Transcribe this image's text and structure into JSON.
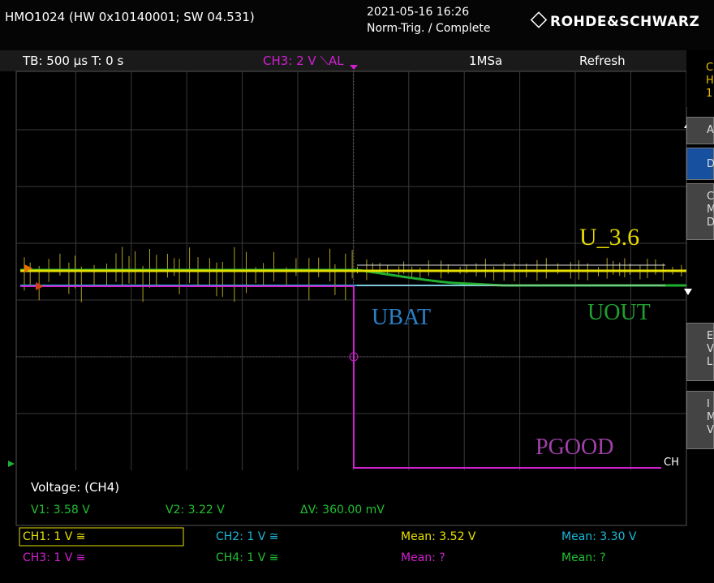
{
  "header": {
    "model": "HMO1024 (HW 0x10140001; SW 04.531)",
    "datetime": "2021-05-16 16:26",
    "trigger_state": "Norm-Trig. / Complete",
    "brand": "ROHDE&SCHWARZ"
  },
  "status_bar": {
    "timebase": "TB: 500 µs  T: 0 s",
    "trigger": "CH3: 2 V ⟍AL",
    "sample_rate": "1MSa",
    "mode": "Refresh"
  },
  "annotations": {
    "u36": "U_3.6",
    "ubat": "UBAT",
    "uout": "UOUT",
    "pgood": "PGOOD",
    "ch_marker": "CH"
  },
  "measurement": {
    "title": "Voltage: (CH4)",
    "v1": "V1: 3.58 V",
    "v2": "V2: 3.22 V",
    "dv": "ΔV: 360.00 mV"
  },
  "channels": {
    "ch1": "CH1: 1 V ≅",
    "ch2": "CH2: 1 V ≅",
    "mean1": "Mean: 3.52 V",
    "mean2": "Mean: 3.30 V",
    "ch3": "CH3: 1 V ≅",
    "ch4": "CH4: 1 V ≅",
    "mean3": "Mean: ?",
    "mean4": "Mean: ?"
  },
  "side_menu": [
    "C",
    "H",
    "1",
    "A",
    "D",
    "C",
    "M",
    "D",
    "E",
    "V",
    "L",
    "I",
    "M",
    "V"
  ]
}
